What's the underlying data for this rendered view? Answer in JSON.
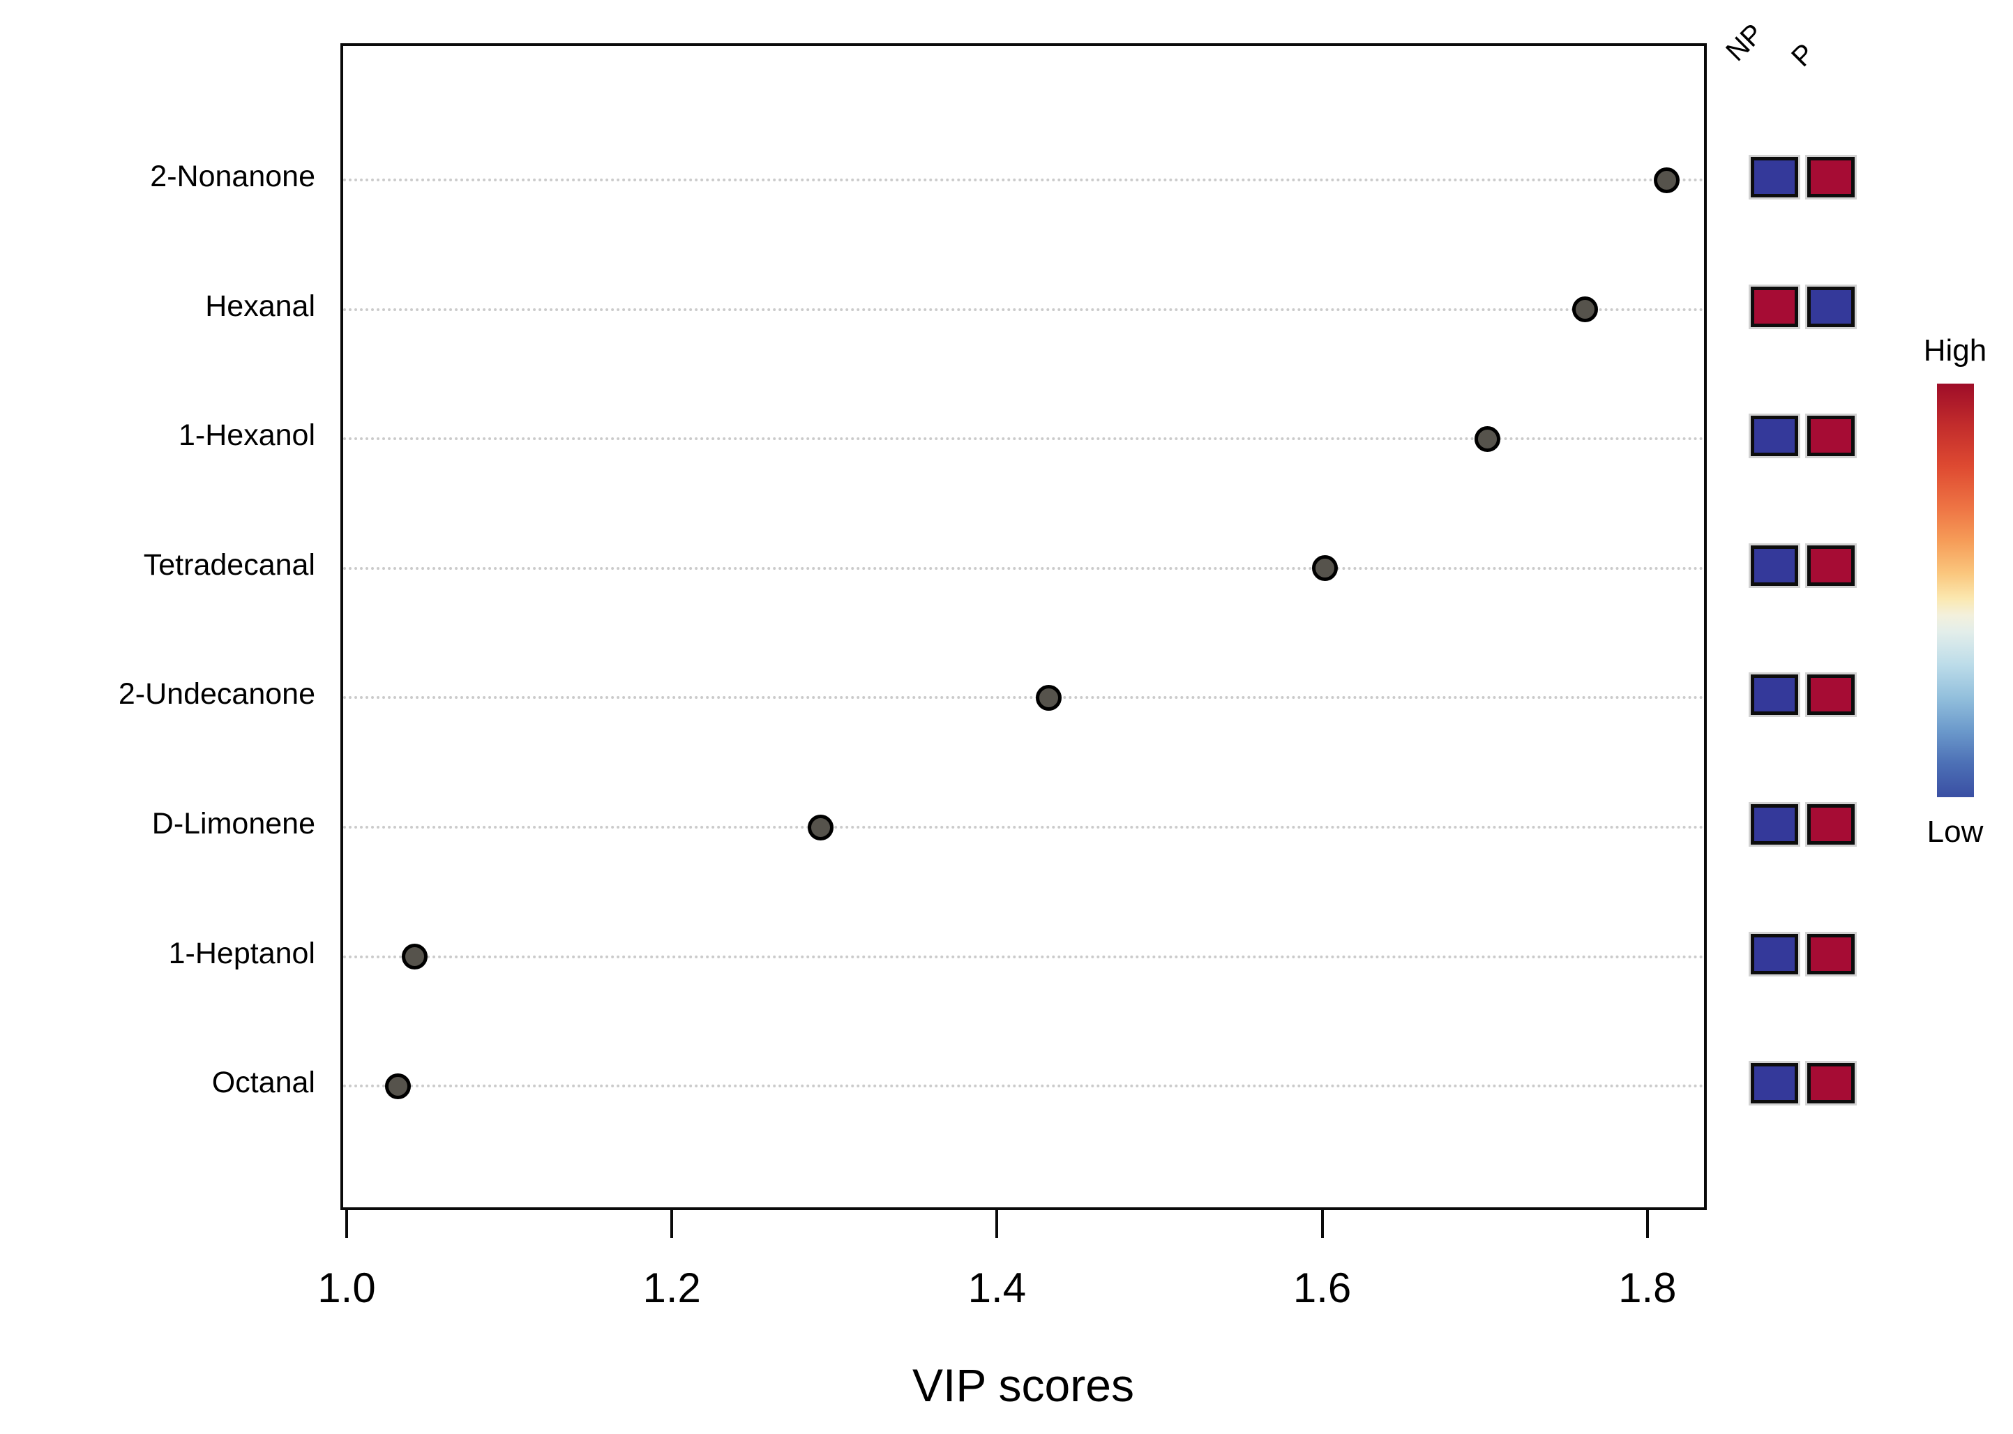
{
  "chart_data": {
    "type": "scatter",
    "title": "",
    "xlabel": "VIP scores",
    "x_ticks": [
      1.0,
      1.2,
      1.4,
      1.6,
      1.8
    ],
    "xlim": [
      0.996,
      1.837
    ],
    "grid": "dotted-horizontal",
    "legend_position": "right",
    "group_columns": [
      "NP",
      "P"
    ],
    "features": [
      {
        "name": "2-Nonanone",
        "vip": 1.81,
        "NP": "low",
        "P": "high"
      },
      {
        "name": "Hexanal",
        "vip": 1.76,
        "NP": "high",
        "P": "low"
      },
      {
        "name": "1-Hexanol",
        "vip": 1.7,
        "NP": "low",
        "P": "high"
      },
      {
        "name": "Tetradecanal",
        "vip": 1.6,
        "NP": "low",
        "P": "high"
      },
      {
        "name": "2-Undecanone",
        "vip": 1.43,
        "NP": "low",
        "P": "high"
      },
      {
        "name": "D-Limonene",
        "vip": 1.29,
        "NP": "low",
        "P": "high"
      },
      {
        "name": "1-Heptanol",
        "vip": 1.04,
        "NP": "low",
        "P": "high"
      },
      {
        "name": "Octanal",
        "vip": 1.03,
        "NP": "low",
        "P": "high"
      }
    ],
    "legend": {
      "high_label": "High",
      "low_label": "Low"
    },
    "colors": {
      "high": "#A60C34",
      "low": "#34399A",
      "dot_fill": "#56534C",
      "dot_stroke": "#000000",
      "gridline": "#CBCBCB"
    }
  }
}
